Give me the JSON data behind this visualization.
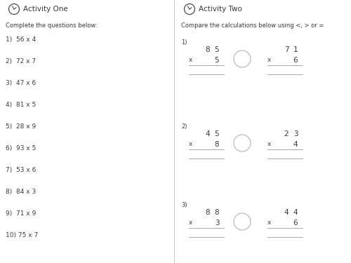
{
  "bg_color": "#ffffff",
  "left_title": "Activity One",
  "right_title": "Activity Two",
  "left_instruction": "Complete the questions below:",
  "right_instruction": "Compare the calculations below using <, > or =",
  "left_questions": [
    "1)  56 x 4",
    "2)  72 x 7",
    "3)  47 x 6",
    "4)  81 x 5",
    "5)  28 x 9",
    "6)  93 x 5",
    "7)  53 x 6",
    "8)  84 x 3",
    "9)  71 x 9",
    "10) 75 x 7"
  ],
  "right_problems": [
    {
      "num": "1)",
      "left_tens": "8",
      "left_ones": "5",
      "left_mult": "5",
      "right_tens": "7",
      "right_ones": "1",
      "right_mult": "6"
    },
    {
      "num": "2)",
      "left_tens": "4",
      "left_ones": "5",
      "left_mult": "8",
      "right_tens": "2",
      "right_ones": "3",
      "right_mult": "4"
    },
    {
      "num": "3)",
      "left_tens": "8",
      "left_ones": "8",
      "left_mult": "3",
      "right_tens": "4",
      "right_ones": "4",
      "right_mult": "6"
    }
  ],
  "text_color": "#3a3a3a",
  "line_color": "#aaaaaa",
  "circle_color": "#bbbbbb",
  "divider_color": "#cccccc",
  "title_fontsize": 7.5,
  "instruction_fontsize": 6.0,
  "question_fontsize": 6.5,
  "number_fontsize": 7.5
}
